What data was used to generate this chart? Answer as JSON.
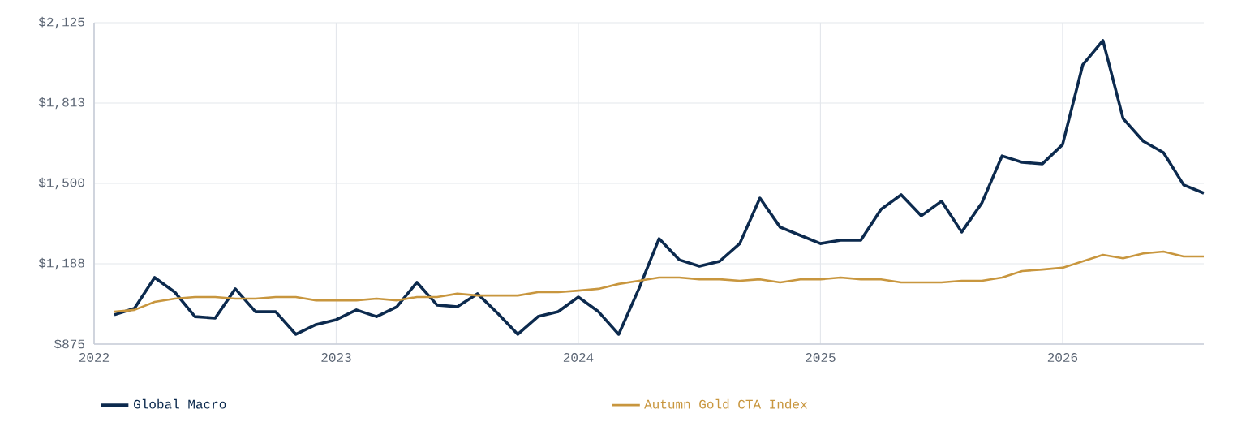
{
  "chart_data": {
    "type": "line",
    "x": [
      "2022-02",
      "2022-03",
      "2022-04",
      "2022-05",
      "2022-06",
      "2022-07",
      "2022-08",
      "2022-09",
      "2022-10",
      "2022-11",
      "2022-12",
      "2023-01",
      "2023-02",
      "2023-03",
      "2023-04",
      "2023-05",
      "2023-06",
      "2023-07",
      "2023-08",
      "2023-09",
      "2023-10",
      "2023-11",
      "2023-12",
      "2024-01",
      "2024-02",
      "2024-03",
      "2024-04",
      "2024-05",
      "2024-06",
      "2024-07",
      "2024-08",
      "2024-09",
      "2024-10",
      "2024-11",
      "2024-12",
      "2025-01",
      "2025-02",
      "2025-03",
      "2025-04",
      "2025-05",
      "2025-06",
      "2025-07",
      "2025-08",
      "2025-09",
      "2025-10",
      "2025-11",
      "2025-12",
      "2026-01",
      "2026-02",
      "2026-03",
      "2026-04",
      "2026-05",
      "2026-06",
      "2026-07",
      "2026-08"
    ],
    "series": [
      {
        "name": "Global Macro",
        "color": "#0c2a4e",
        "values": [
          989,
          1014,
          1134,
          1077,
          982,
          976,
          1090,
          1001,
          1001,
          913,
          951,
          970,
          1008,
          982,
          1020,
          1115,
          1027,
          1020,
          1071,
          995,
          913,
          982,
          1001,
          1058,
          1001,
          913,
          1090,
          1285,
          1203,
          1178,
          1197,
          1266,
          1443,
          1330,
          1298,
          1266,
          1279,
          1279,
          1399,
          1456,
          1374,
          1431,
          1311,
          1424,
          1607,
          1582,
          1576,
          1651,
          1961,
          2056,
          1752,
          1664,
          1620,
          1494,
          1462
        ]
      },
      {
        "name": "Autumn Gold CTA Index",
        "color": "#c8963e",
        "values": [
          1001,
          1008,
          1039,
          1052,
          1058,
          1058,
          1052,
          1052,
          1058,
          1058,
          1045,
          1045,
          1045,
          1052,
          1045,
          1058,
          1058,
          1071,
          1064,
          1064,
          1064,
          1077,
          1077,
          1083,
          1090,
          1109,
          1121,
          1134,
          1134,
          1127,
          1127,
          1121,
          1127,
          1115,
          1127,
          1127,
          1134,
          1127,
          1127,
          1115,
          1115,
          1115,
          1121,
          1121,
          1134,
          1159,
          1165,
          1172,
          1197,
          1222,
          1209,
          1228,
          1235,
          1216,
          1216
        ]
      }
    ],
    "xlim": [
      "2022-01",
      "2026-08"
    ],
    "xticks": [
      "2022",
      "2023",
      "2024",
      "2025",
      "2026"
    ],
    "ylim": [
      875,
      2125
    ],
    "yticks": [
      {
        "value": 875,
        "label": "$875"
      },
      {
        "value": 1187.5,
        "label": "$1,188"
      },
      {
        "value": 1500,
        "label": "$1,500"
      },
      {
        "value": 1812.5,
        "label": "$1,813"
      },
      {
        "value": 2125,
        "label": "$2,125"
      }
    ],
    "grid": true,
    "legend": "bottom",
    "marker": "none",
    "line_style": "solid"
  }
}
